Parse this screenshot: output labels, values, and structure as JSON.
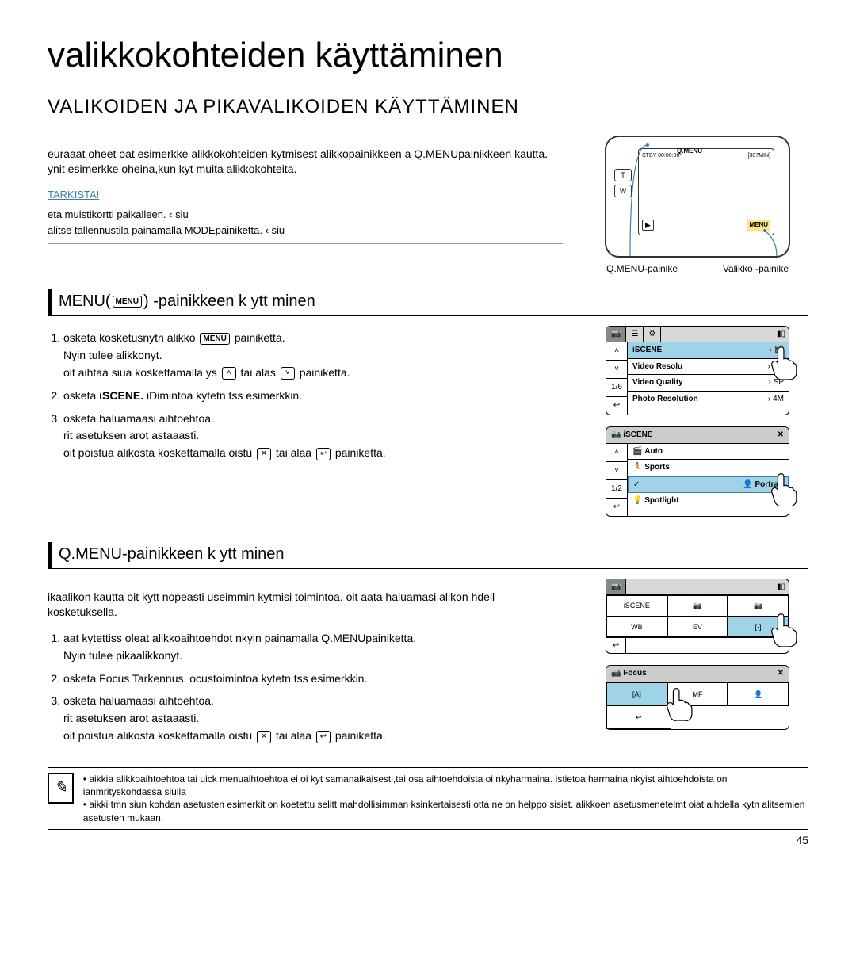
{
  "page": {
    "title": "valikkokohteiden käyttäminen",
    "section": "VALIKOIDEN JA PIKAVALIKOIDEN KÄYTTÄMINEN",
    "intro": "euraaat oheet oat esimerkke alikkokohteiden kytmisest alikkopainikkeen a Q.MENUpainikkeen kautta. ynit esimerkke oheina,kun kyt muita alikkokohteita.",
    "tarkista": "TARKISTA!",
    "check1": "eta muistikortti paikalleen.    ‹ siu",
    "check2": "alitse tallennustila painamalla MODEpainiketta.    ‹ siu",
    "qmenu_label": "Q.MENU-painike",
    "menu_label": "Valikko -painike",
    "page_num": "45"
  },
  "menu_section": {
    "heading_pre": "MENU(",
    "heading_badge": "MENU",
    "heading_post": ") -painikkeen k ytt minen",
    "s1a": "osketa kosketusnytn alikko",
    "s1badge": "MENU",
    "s1b": "painiketta.",
    "s1c": "Nyin tulee alikkonyt.",
    "s1d": "oit aihtaa siua koskettamalla ys",
    "s1e": "tai alas",
    "s1f": "painiketta.",
    "s2a": "osketa",
    "s2b": "iSCENE.",
    "s2c": "iDimintoa kytetn tss esimerkkin.",
    "s3a": "osketa haluamaasi aihtoehtoa.",
    "s3b": "rit asetuksen arot astaaasti.",
    "s3c": "oit poistua alikosta koskettamalla oistu",
    "s3d": "tai alaa",
    "s3e": "painiketta."
  },
  "qmenu_section": {
    "heading": "Q.MENU-painikkeen k ytt minen",
    "intro": "ikaalikon kautta oit kytt nopeasti useimmin kytmisi toimintoa. oit aata haluamasi alikon hdell kosketuksella.",
    "s1a": "aat kytettiss oleat alikkoaihtoehdot nkyin painamalla Q.MENUpainiketta.",
    "s1b": "Nyin tulee pikaalikkonyt.",
    "s2a": "osketa Focus Tarkennus. ocustoimintoa kytetn tss esimerkkin.",
    "s3a": "osketa haluamaasi aihtoehtoa.",
    "s3b": "rit asetuksen arot astaaasti.",
    "s3c": "oit poistua alikosta koskettamalla oistu",
    "s3d": "tai alaa",
    "s3e": "painiketta."
  },
  "note": {
    "line1": "aikkia alikkoaihtoehtoa tai uick menuaihtoehtoa ei oi kyt samanaikaisesti,tai osa aihtoehdoista oi nkyharmaina. istietoa harmaina nkyist aihtoehdoista on ianmrityskohdassa siulla",
    "line2": "aikki tmn siun kohdan asetusten esimerkit on koetettu selitt mahdollisimman ksinkertaisesti,otta ne on helppo sisist. alikkoen asetusmenetelmt oiat aihdella kytn alitsemien asetusten mukaan."
  },
  "lcd1": {
    "tabs": [
      "📷",
      "☰",
      "⚙"
    ],
    "rows": [
      {
        "label": "iSCENE",
        "right": "🎬",
        "hl": true
      },
      {
        "label": "Video Resolu",
        "right": "HD",
        "hl": false
      },
      {
        "label": "Video Quality",
        "right": "SP",
        "hl": false
      },
      {
        "label": "Photo Resolution",
        "right": "4M",
        "hl": false
      }
    ],
    "nav": [
      "˄",
      "˅",
      "1/6",
      "↩"
    ]
  },
  "lcd2": {
    "title": "iSCENE",
    "rows": [
      {
        "label": "Auto",
        "icon": "🎬"
      },
      {
        "label": "Sports",
        "icon": "🏃"
      },
      {
        "label": "Portrait",
        "icon": "👤",
        "sel": true
      },
      {
        "label": "Spotlight",
        "icon": "💡"
      }
    ],
    "nav": [
      "˄",
      "˅",
      "1/2",
      "↩"
    ]
  },
  "lcd3": {
    "cells": [
      {
        "t": "iSCENE"
      },
      {
        "t": "📷"
      },
      {
        "t": "📷"
      },
      {
        "t": "WB"
      },
      {
        "t": "EV"
      },
      {
        "t": "[·]",
        "hl": true
      }
    ],
    "back": "↩"
  },
  "lcd4": {
    "title": "Focus",
    "cells": [
      {
        "t": "[A]",
        "hl": true
      },
      {
        "t": "MF"
      },
      {
        "t": "👤"
      }
    ],
    "back": "↩"
  },
  "camera": {
    "qmenu": "Q.MENU",
    "menu": "MENU",
    "top1": "STBY 00:00:00",
    "top2": "[307MIN]",
    "side": [
      "T",
      "W"
    ]
  },
  "colors": {
    "highlight": "#9fd4e8",
    "link": "#3a7fa6",
    "menu_btn": "#ffe680"
  }
}
